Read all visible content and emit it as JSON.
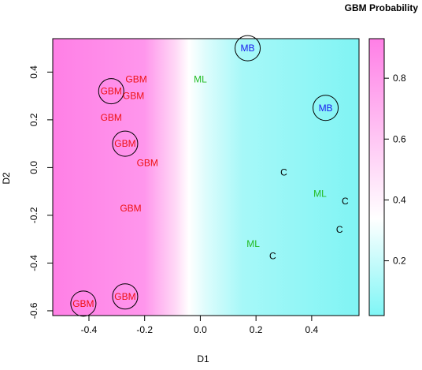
{
  "chart_data": {
    "type": "scatter",
    "title": "GBM Probability",
    "xlabel": "D1",
    "ylabel": "D2",
    "xlim": [
      -0.53,
      0.57
    ],
    "ylim": [
      -0.62,
      0.54
    ],
    "x_ticks": [
      "-0.4",
      "-0.2",
      "0.0",
      "0.2",
      "0.4"
    ],
    "y_ticks": [
      "-0.6",
      "-0.4",
      "-0.2",
      "0.0",
      "0.2",
      "0.4"
    ],
    "background": "horizontal gradient of GBM probability along D1: magenta (high) on the left, white near D1 = -0.08, cyan (low) on the right",
    "colorbar": {
      "ticks": [
        "0.2",
        "0.4",
        "0.6",
        "0.8"
      ],
      "range": [
        0.02,
        0.93
      ],
      "low_color": "#7ff6f6",
      "mid_color": "#ffffff",
      "high_color": "#ff7fe6",
      "placement": "right"
    },
    "label_colors": {
      "GBM": "#ee1111",
      "MB": "#1a1aee",
      "ML": "#22bb22",
      "C": "#000000"
    },
    "points": [
      {
        "label": "GBM",
        "x": -0.32,
        "y": 0.32,
        "circled": true
      },
      {
        "label": "GBM",
        "x": -0.23,
        "y": 0.37,
        "circled": false
      },
      {
        "label": "GBM",
        "x": -0.24,
        "y": 0.3,
        "circled": false
      },
      {
        "label": "GBM",
        "x": -0.32,
        "y": 0.21,
        "circled": false
      },
      {
        "label": "GBM",
        "x": -0.27,
        "y": 0.1,
        "circled": true
      },
      {
        "label": "GBM",
        "x": -0.19,
        "y": 0.02,
        "circled": false
      },
      {
        "label": "GBM",
        "x": -0.25,
        "y": -0.17,
        "circled": false
      },
      {
        "label": "GBM",
        "x": -0.27,
        "y": -0.54,
        "circled": true
      },
      {
        "label": "GBM",
        "x": -0.42,
        "y": -0.57,
        "circled": true
      },
      {
        "label": "ML",
        "x": 0.0,
        "y": 0.37,
        "circled": false
      },
      {
        "label": "ML",
        "x": 0.43,
        "y": -0.11,
        "circled": false
      },
      {
        "label": "ML",
        "x": 0.19,
        "y": -0.32,
        "circled": false
      },
      {
        "label": "MB",
        "x": 0.17,
        "y": 0.5,
        "circled": true
      },
      {
        "label": "MB",
        "x": 0.45,
        "y": 0.25,
        "circled": true
      },
      {
        "label": "C",
        "x": 0.3,
        "y": -0.02,
        "circled": false
      },
      {
        "label": "C",
        "x": 0.52,
        "y": -0.14,
        "circled": false
      },
      {
        "label": "C",
        "x": 0.5,
        "y": -0.26,
        "circled": false
      },
      {
        "label": "C",
        "x": 0.26,
        "y": -0.37,
        "circled": false
      }
    ]
  }
}
